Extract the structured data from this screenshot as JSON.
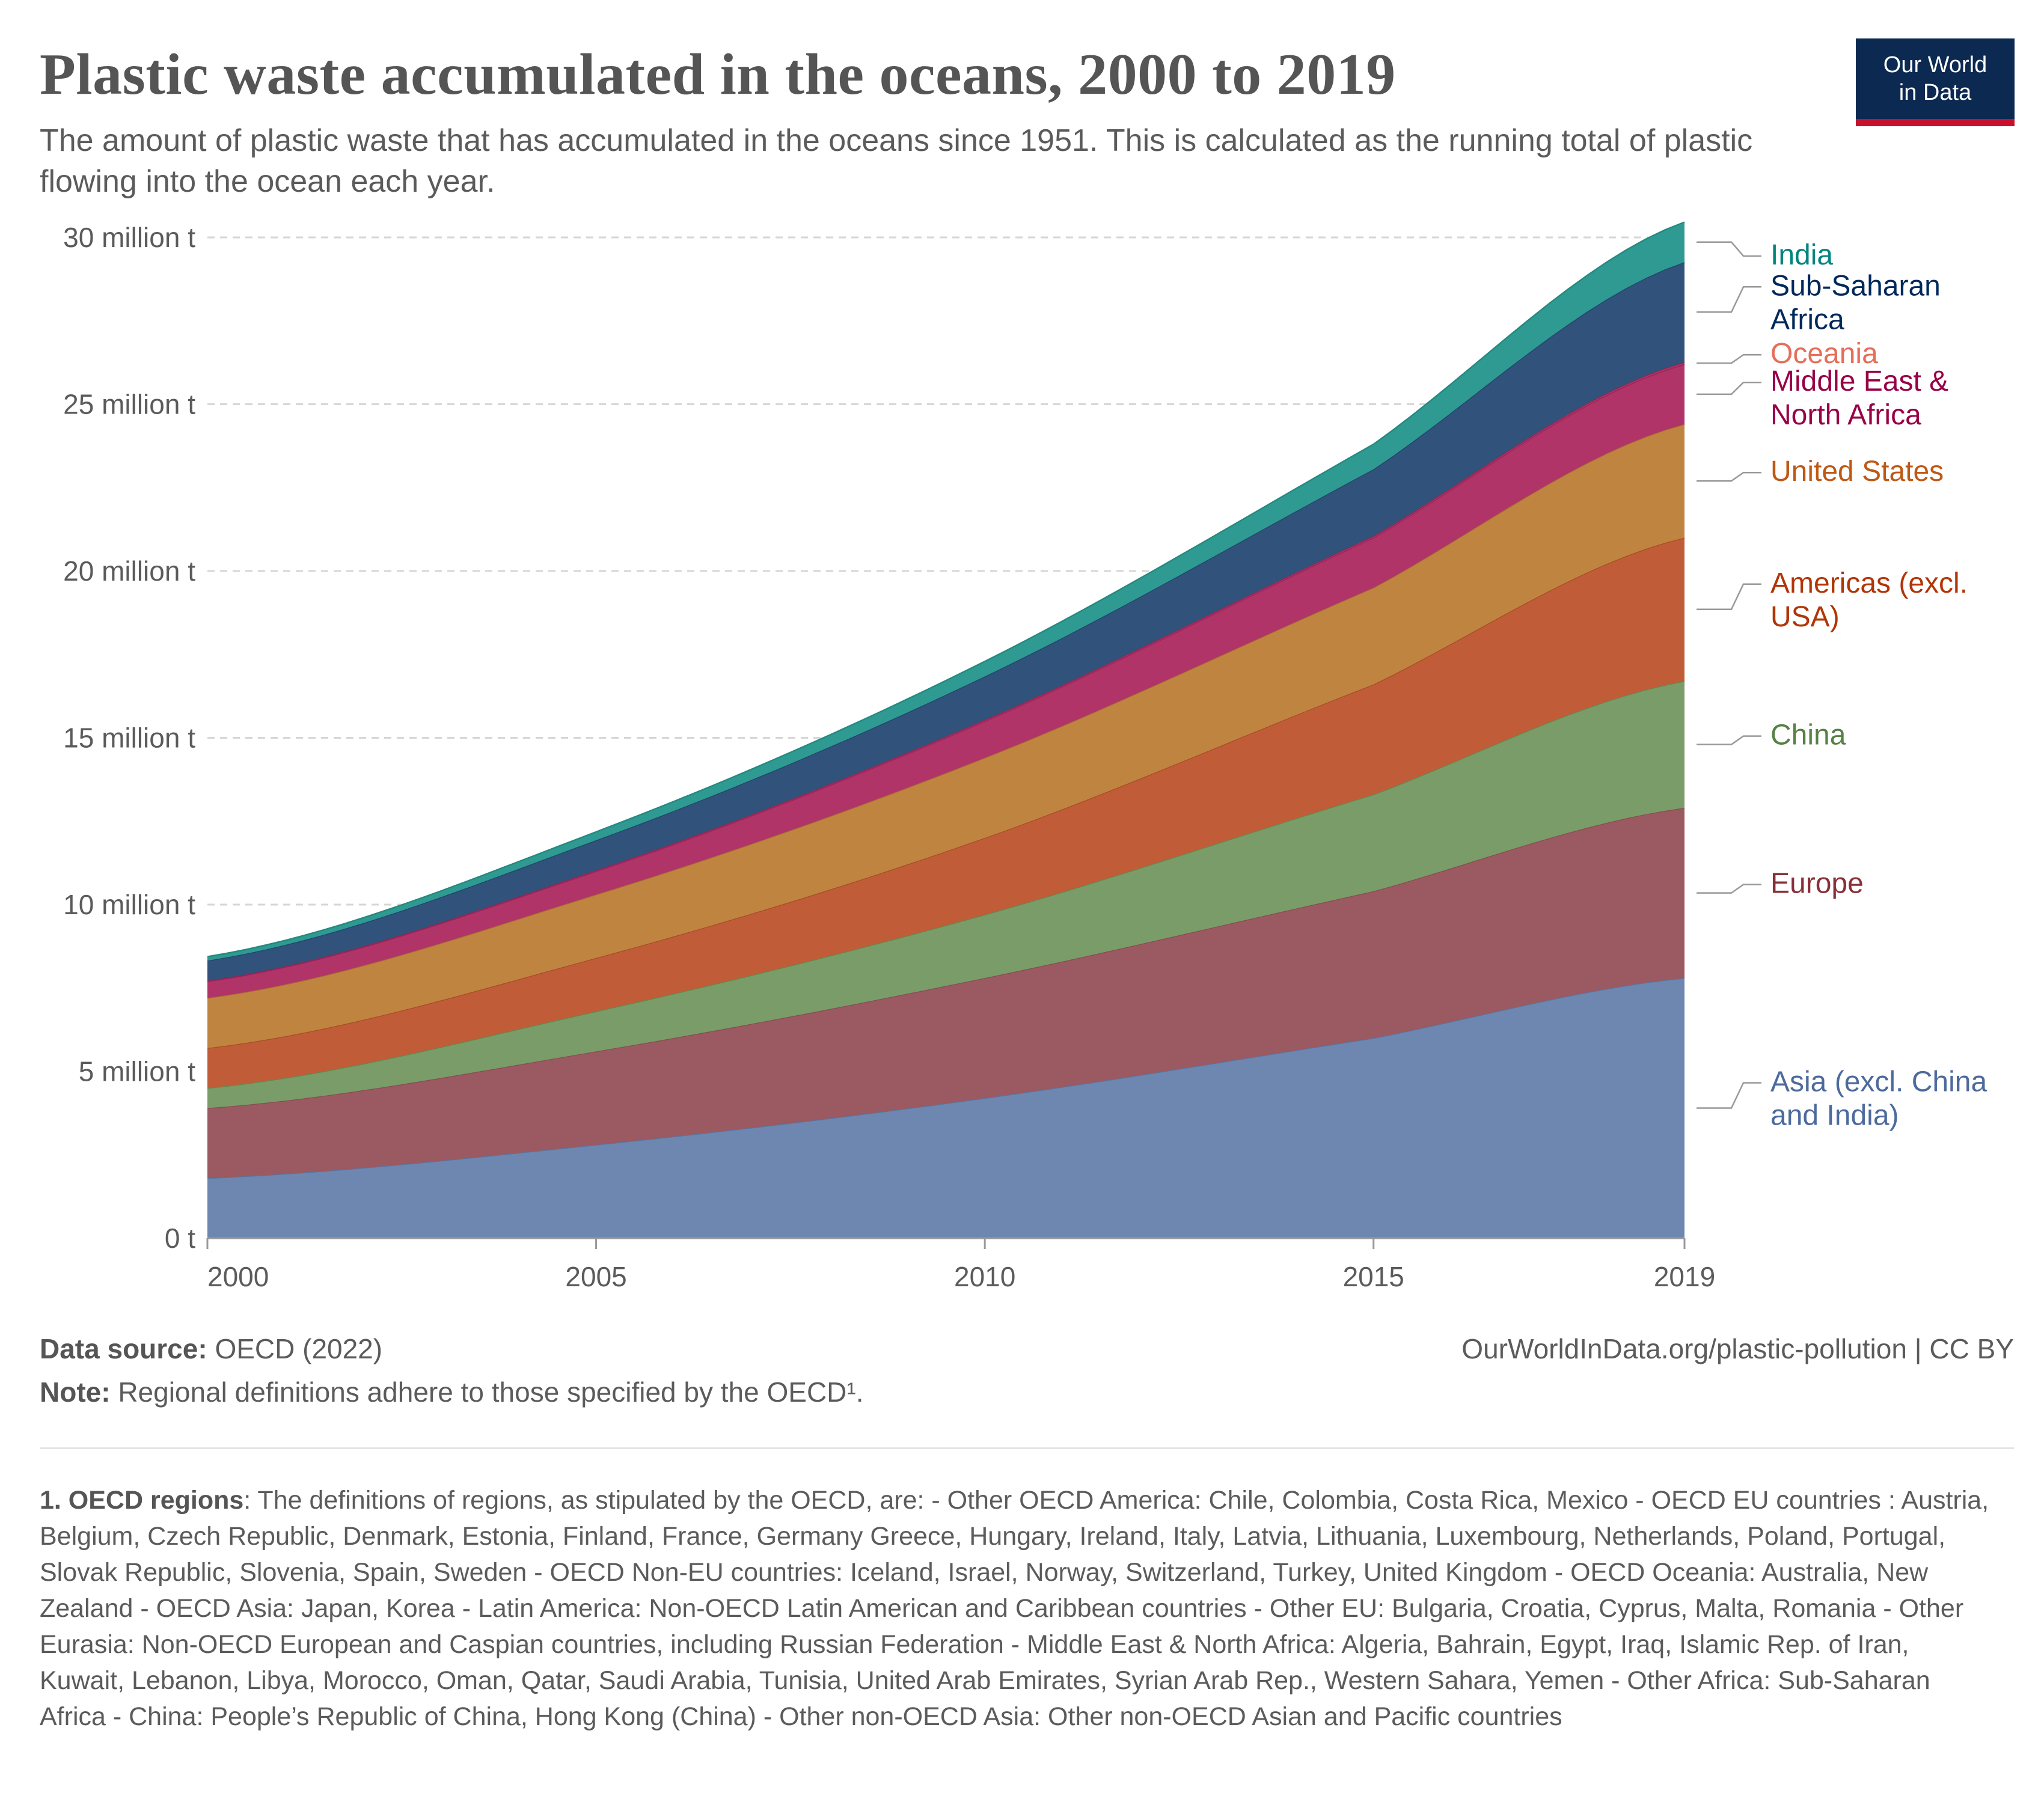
{
  "header": {
    "title": "Plastic waste accumulated in the oceans, 2000 to 2019",
    "subtitle": "The amount of plastic waste that has accumulated in the oceans since 1951. This is calculated as the running total of plastic flowing into the ocean each year."
  },
  "logo": {
    "line1": "Our World",
    "line2": "in Data",
    "bg_color": "#0b2951",
    "accent_color": "#c8102e"
  },
  "chart_data": {
    "type": "area",
    "stacked": true,
    "title": "Plastic waste accumulated in the oceans, 2000 to 2019",
    "x": [
      2000,
      2005,
      2010,
      2015,
      2019
    ],
    "x_ticks": [
      "2000",
      "2005",
      "2010",
      "2015",
      "2019"
    ],
    "y_ticks": [
      "0 t",
      "5 million t",
      "10 million t",
      "15 million t",
      "20 million t",
      "25 million t",
      "30 million t"
    ],
    "y_tick_values": [
      0,
      5,
      10,
      15,
      20,
      25,
      30
    ],
    "unit": "million t",
    "xlim": [
      2000,
      2019
    ],
    "ylim": [
      0,
      30
    ],
    "grid": "horizontal dashed",
    "legend": "right, end of each area",
    "series": [
      {
        "name": "Asia (excl. China and India)",
        "label_lines": [
          "Asia (excl. China",
          "and India)"
        ],
        "color": "#6d87b0",
        "line": "#5a74a0",
        "text_color": "#4c6a9c",
        "values": [
          1.8,
          2.8,
          4.2,
          6.0,
          7.8
        ]
      },
      {
        "name": "Europe",
        "label_lines": [
          "Europe"
        ],
        "color": "#9b5961",
        "line": "#8a4a52",
        "text_color": "#883039",
        "values": [
          2.1,
          2.8,
          3.6,
          4.4,
          5.1
        ]
      },
      {
        "name": "China",
        "label_lines": [
          "China"
        ],
        "color": "#7a9c69",
        "line": "#5f8a4d",
        "text_color": "#578145",
        "values": [
          0.6,
          1.2,
          1.9,
          2.9,
          3.8
        ]
      },
      {
        "name": "Americas (excl. USA)",
        "label_lines": [
          "Americas (excl.",
          "USA)"
        ],
        "color": "#c05d38",
        "line": "#a84a28",
        "text_color": "#b13507",
        "values": [
          1.2,
          1.6,
          2.3,
          3.3,
          4.3
        ]
      },
      {
        "name": "United States",
        "label_lines": [
          "United States"
        ],
        "color": "#c08441",
        "line": "#a76f30",
        "text_color": "#be5915",
        "values": [
          1.5,
          1.9,
          2.4,
          2.9,
          3.4
        ]
      },
      {
        "name": "Middle East & North Africa",
        "label_lines": [
          "Middle East &",
          "North Africa"
        ],
        "color": "#b03467",
        "line": "#962455",
        "text_color": "#970046",
        "values": [
          0.5,
          0.7,
          1.1,
          1.5,
          1.8
        ]
      },
      {
        "name": "Oceania",
        "label_lines": [
          "Oceania"
        ],
        "color": "#b03467",
        "line": "#962455",
        "text_color": "#e56e5a",
        "values": [
          0.02,
          0.03,
          0.04,
          0.05,
          0.06
        ]
      },
      {
        "name": "Sub-Saharan Africa",
        "label_lines": [
          "Sub-Saharan",
          "Africa"
        ],
        "color": "#31527b",
        "line": "#23416a",
        "text_color": "#00295b",
        "values": [
          0.6,
          0.9,
          1.3,
          2.0,
          3.0
        ]
      },
      {
        "name": "India",
        "label_lines": [
          "India"
        ],
        "color": "#2f9a91",
        "line": "#238a80",
        "text_color": "#00847e",
        "values": [
          0.12,
          0.25,
          0.45,
          0.75,
          1.2
        ]
      }
    ]
  },
  "footer": {
    "source_label": "Data source:",
    "source_value": "OECD (2022)",
    "note_label": "Note:",
    "note_value": "Regional definitions adhere to those specified by the OECD¹.",
    "url": "OurWorldInData.org/plastic-pollution | CC BY"
  },
  "footnote": {
    "label": "1. OECD regions",
    "text": ": The definitions of regions, as stipulated by the OECD, are: - Other OECD America: Chile, Colombia, Costa Rica, Mexico - OECD EU countries : Austria, Belgium, Czech Republic, Denmark, Estonia, Finland, France, Germany Greece, Hungary, Ireland, Italy, Latvia, Lithuania, Luxembourg, Netherlands, Poland, Portugal, Slovak Republic, Slovenia, Spain, Sweden - OECD Non-EU countries: Iceland, Israel, Norway, Switzerland, Turkey, United Kingdom - OECD Oceania: Australia, New Zealand - OECD Asia: Japan, Korea - Latin America: Non-OECD Latin American and Caribbean countries - Other EU: Bulgaria, Croatia, Cyprus, Malta, Romania - Other Eurasia: Non-OECD European and Caspian countries, including Russian Federation - Middle East & North Africa: Algeria, Bahrain, Egypt, Iraq, Islamic Rep. of Iran, Kuwait, Lebanon, Libya, Morocco, Oman, Qatar, Saudi Arabia, Tunisia, United Arab Emirates, Syrian Arab Rep., Western Sahara, Yemen - Other Africa: Sub-Saharan Africa - China: People’s Republic of China, Hong Kong (China) - Other non-OECD Asia: Other non-OECD Asian and Pacific countries"
  }
}
